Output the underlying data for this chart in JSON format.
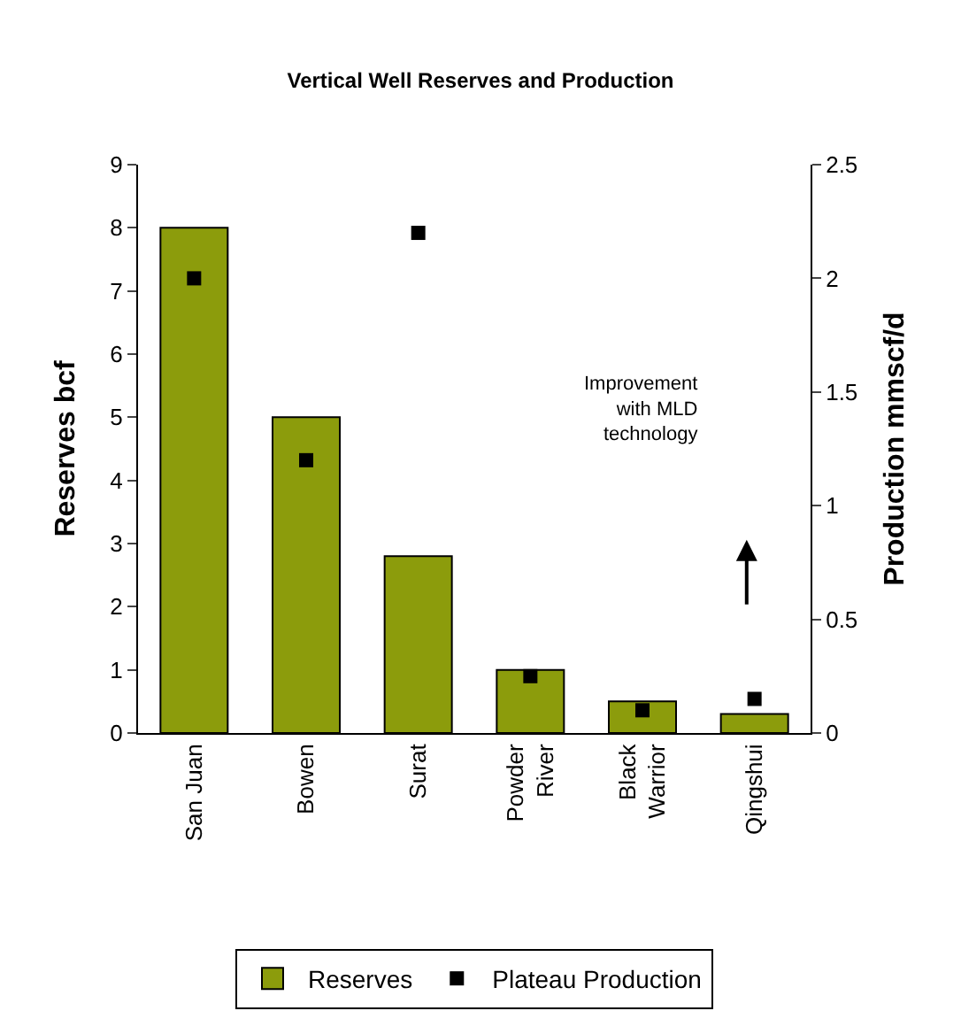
{
  "chart_data": {
    "type": "bar",
    "title": "Vertical Well Reserves and Production",
    "ylabel": "Reserves bcf",
    "y2label": "Production mmscf/d",
    "categories": [
      "San Juan",
      "Bowen",
      "Surat",
      "Powder\nRiver",
      "Black\nWarrior",
      "Qingshui"
    ],
    "series": [
      {
        "name": "Reserves",
        "color": "#8c9c0c",
        "values": [
          8,
          5,
          2.8,
          1,
          0.5,
          0.3
        ]
      },
      {
        "name": "Plateau Production",
        "type": "scatter",
        "axis": "y2",
        "color": "#000000",
        "values": [
          2.0,
          1.2,
          2.2,
          0.25,
          0.1,
          0.15
        ]
      }
    ],
    "ylim": [
      0,
      9
    ],
    "yticks": [
      0,
      1,
      2,
      3,
      4,
      5,
      6,
      7,
      8,
      9
    ],
    "y2lim": [
      0,
      2.5
    ],
    "y2ticks": [
      0,
      0.5,
      1,
      1.5,
      2,
      2.5
    ],
    "marker": "square",
    "legend": "bottom",
    "annotations": [
      "Improvement\nwith MLD\ntechnology"
    ]
  }
}
